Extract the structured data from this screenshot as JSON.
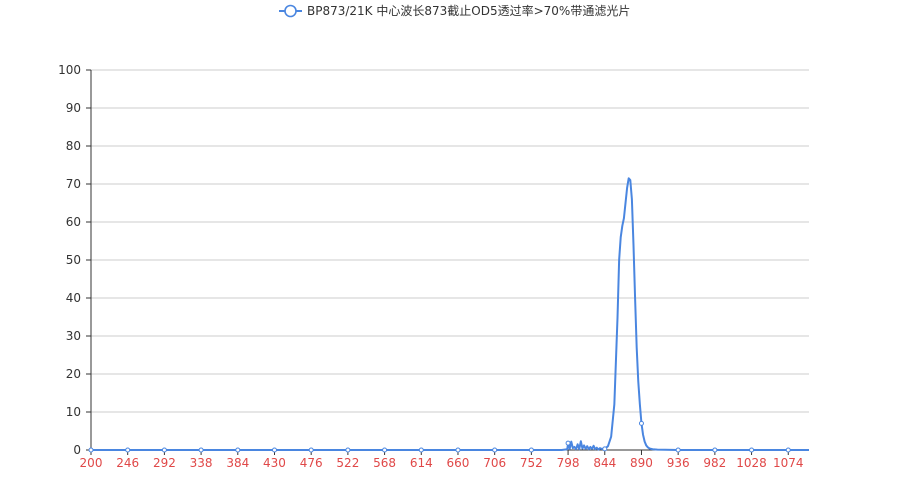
{
  "chart_data": {
    "type": "line",
    "title": "",
    "xlabel": "",
    "ylabel": "",
    "legend_position": "top-center",
    "grid": "horizontal",
    "colors": {
      "series": "#4a86e0",
      "x_tick_labels": "#e04848",
      "axis": "#333333",
      "grid": "#cccccc"
    },
    "x_ticks": [
      200,
      246,
      292,
      338,
      384,
      430,
      476,
      522,
      568,
      614,
      660,
      706,
      752,
      798,
      844,
      890,
      936,
      982,
      1028,
      1074
    ],
    "y_ticks": [
      0,
      10,
      20,
      30,
      40,
      50,
      60,
      70,
      80,
      90,
      100
    ],
    "xlim": [
      200,
      1100
    ],
    "ylim": [
      0,
      100
    ],
    "series": [
      {
        "name": "BP873/21K 中心波长873截止OD5透过率>70%带通滤光片",
        "color": "#4a86e0",
        "x": [
          200,
          246,
          292,
          338,
          384,
          430,
          476,
          522,
          568,
          614,
          660,
          706,
          752,
          790,
          797,
          798,
          800,
          802,
          804,
          806,
          808,
          810,
          812,
          814,
          816,
          818,
          820,
          822,
          824,
          826,
          828,
          830,
          832,
          834,
          836,
          838,
          840,
          844,
          848,
          852,
          856,
          860,
          862,
          864,
          866,
          868,
          870,
          872,
          874,
          876,
          878,
          880,
          882,
          884,
          886,
          888,
          890,
          892,
          894,
          896,
          898,
          900,
          904,
          910,
          920,
          936,
          960,
          982,
          1028,
          1074,
          1100
        ],
        "y": [
          0,
          0,
          0,
          0,
          0,
          0,
          0,
          0,
          0,
          0,
          0,
          0,
          0,
          0,
          0.2,
          1.8,
          0.3,
          2.2,
          0.5,
          0.8,
          0.2,
          1.5,
          0.2,
          2.3,
          0.4,
          1.2,
          0.3,
          1.0,
          0.2,
          0.8,
          0.3,
          1.1,
          0.2,
          0.6,
          0.1,
          0.5,
          0.3,
          0.3,
          1.0,
          3.5,
          12,
          35,
          50,
          56,
          59,
          61,
          65,
          69,
          71.5,
          71,
          66,
          54,
          40,
          27,
          18,
          12,
          7,
          4,
          2.2,
          1.2,
          0.7,
          0.4,
          0.2,
          0.1,
          0.05,
          0,
          0,
          0,
          0,
          0,
          0
        ]
      }
    ]
  }
}
